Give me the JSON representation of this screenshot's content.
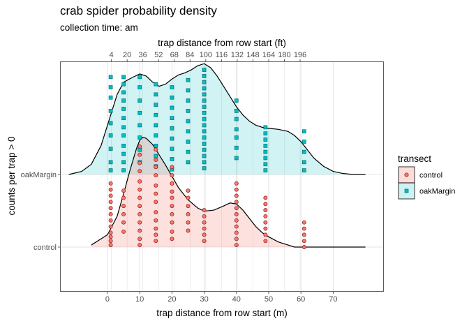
{
  "chart_data": {
    "type": "ridgeline-density-with-points",
    "title": "crab spider probability density",
    "subtitle": "collection time: am",
    "xlabel": "trap distance from row start (m)",
    "x2label": "trap distance from row start (ft)",
    "ylabel": "counts per trap > 0",
    "xlim": [
      -14.5,
      85.5
    ],
    "x_ticks": [
      0,
      10,
      20,
      30,
      40,
      50,
      60,
      70
    ],
    "x2_ticks_ft": [
      4,
      20,
      36,
      52,
      68,
      84,
      100,
      116,
      132,
      148,
      164,
      180,
      196
    ],
    "y_categories": [
      "control",
      "oakMargin"
    ],
    "grid": true,
    "legend": {
      "title": "transect",
      "position": "right",
      "entries": [
        "control",
        "oakMargin"
      ]
    },
    "colors": {
      "control": "#f8766d",
      "oakMargin": "#00bfc4"
    },
    "series": [
      {
        "name": "control",
        "density_x": [
          -5,
          0,
          3,
          5,
          7,
          9,
          10,
          11,
          12,
          14,
          16,
          18,
          20,
          22,
          25,
          28,
          30,
          33,
          36,
          38,
          40,
          42,
          44,
          46,
          48,
          50,
          53,
          56,
          58,
          60,
          62,
          64,
          67,
          70,
          73,
          76,
          80
        ],
        "density_y": [
          0.02,
          0.12,
          0.3,
          0.52,
          0.75,
          0.96,
          1.04,
          1.07,
          1.06,
          1.0,
          0.9,
          0.8,
          0.69,
          0.58,
          0.46,
          0.38,
          0.35,
          0.36,
          0.4,
          0.43,
          0.42,
          0.36,
          0.28,
          0.2,
          0.14,
          0.1,
          0.05,
          0.02,
          0.0,
          0.0,
          0.0,
          0.0,
          0.0,
          0.0,
          0.0,
          0.0,
          0.0
        ],
        "points": [
          [
            1,
            0.62
          ],
          [
            1,
            0.56
          ],
          [
            1,
            0.5
          ],
          [
            1,
            0.44
          ],
          [
            1,
            0.38
          ],
          [
            1,
            0.32
          ],
          [
            1,
            0.26
          ],
          [
            1,
            0.2
          ],
          [
            1,
            0.14
          ],
          [
            1,
            0.1
          ],
          [
            1,
            0.06
          ],
          [
            1,
            0.02
          ],
          [
            5,
            0.55
          ],
          [
            5,
            0.48
          ],
          [
            5,
            0.4
          ],
          [
            5,
            0.32
          ],
          [
            5,
            0.24
          ],
          [
            5,
            0.15
          ],
          [
            10,
            0.98
          ],
          [
            10,
            0.9
          ],
          [
            10,
            0.82
          ],
          [
            10,
            0.74
          ],
          [
            10,
            0.64
          ],
          [
            10,
            0.56
          ],
          [
            10,
            0.48
          ],
          [
            10,
            0.4
          ],
          [
            10,
            0.32
          ],
          [
            10,
            0.24
          ],
          [
            10,
            0.16
          ],
          [
            10,
            0.08
          ],
          [
            10,
            0.02
          ],
          [
            15,
            0.95
          ],
          [
            15,
            0.85
          ],
          [
            15,
            0.78
          ],
          [
            15,
            0.7
          ],
          [
            15,
            0.6
          ],
          [
            15,
            0.52
          ],
          [
            15,
            0.44
          ],
          [
            15,
            0.34
          ],
          [
            15,
            0.26
          ],
          [
            15,
            0.18
          ],
          [
            15,
            0.12
          ],
          [
            15,
            0.06
          ],
          [
            20,
            0.78
          ],
          [
            20,
            0.7
          ],
          [
            20,
            0.62
          ],
          [
            20,
            0.54
          ],
          [
            20,
            0.48
          ],
          [
            20,
            0.4
          ],
          [
            20,
            0.32
          ],
          [
            20,
            0.24
          ],
          [
            20,
            0.15
          ],
          [
            20,
            0.08
          ],
          [
            25,
            0.55
          ],
          [
            25,
            0.48
          ],
          [
            25,
            0.4
          ],
          [
            25,
            0.32
          ],
          [
            25,
            0.24
          ],
          [
            25,
            0.16
          ],
          [
            30,
            0.36
          ],
          [
            30,
            0.3
          ],
          [
            30,
            0.24
          ],
          [
            30,
            0.18
          ],
          [
            30,
            0.12
          ],
          [
            30,
            0.06
          ],
          [
            40,
            0.62
          ],
          [
            40,
            0.56
          ],
          [
            40,
            0.5
          ],
          [
            40,
            0.44
          ],
          [
            40,
            0.38
          ],
          [
            40,
            0.32
          ],
          [
            40,
            0.26
          ],
          [
            40,
            0.2
          ],
          [
            40,
            0.14
          ],
          [
            40,
            0.08
          ],
          [
            40,
            0.02
          ],
          [
            49,
            0.48
          ],
          [
            49,
            0.42
          ],
          [
            49,
            0.36
          ],
          [
            49,
            0.3
          ],
          [
            49,
            0.24
          ],
          [
            49,
            0.18
          ],
          [
            49,
            0.12
          ],
          [
            49,
            0.06
          ],
          [
            61,
            0.24
          ],
          [
            61,
            0.18
          ],
          [
            61,
            0.12
          ],
          [
            61,
            0.06
          ],
          [
            61,
            0.0
          ]
        ]
      },
      {
        "name": "oakMargin",
        "density_x": [
          -12,
          -8,
          -5,
          -2,
          0,
          3,
          5,
          8,
          10,
          12,
          14,
          16,
          18,
          20,
          22,
          24,
          26,
          28,
          30,
          32,
          34,
          36,
          38,
          40,
          42,
          44,
          46,
          48,
          50,
          53,
          56,
          58,
          60,
          62,
          64,
          67,
          70,
          73,
          76,
          80
        ],
        "density_y": [
          0.0,
          0.03,
          0.1,
          0.28,
          0.48,
          0.78,
          0.9,
          0.95,
          0.98,
          0.96,
          0.9,
          0.86,
          0.88,
          0.93,
          0.97,
          0.99,
          1.02,
          1.06,
          1.08,
          1.04,
          0.96,
          0.86,
          0.76,
          0.66,
          0.58,
          0.52,
          0.48,
          0.46,
          0.45,
          0.44,
          0.42,
          0.38,
          0.32,
          0.24,
          0.16,
          0.08,
          0.03,
          0.01,
          0.0,
          0.0
        ],
        "points": [
          [
            1,
            0.95
          ],
          [
            1,
            0.85
          ],
          [
            1,
            0.75
          ],
          [
            1,
            0.62
          ],
          [
            1,
            0.5
          ],
          [
            1,
            0.38
          ],
          [
            1,
            0.25
          ],
          [
            1,
            0.12
          ],
          [
            1,
            0.04
          ],
          [
            5,
            0.95
          ],
          [
            5,
            0.88
          ],
          [
            5,
            0.8
          ],
          [
            5,
            0.72
          ],
          [
            5,
            0.64
          ],
          [
            5,
            0.55
          ],
          [
            5,
            0.46
          ],
          [
            5,
            0.38
          ],
          [
            5,
            0.28
          ],
          [
            5,
            0.2
          ],
          [
            5,
            0.12
          ],
          [
            5,
            0.04
          ],
          [
            10,
            0.95
          ],
          [
            10,
            0.85
          ],
          [
            10,
            0.72
          ],
          [
            10,
            0.6
          ],
          [
            10,
            0.48
          ],
          [
            10,
            0.36
          ],
          [
            10,
            0.24
          ],
          [
            10,
            0.12
          ],
          [
            15,
            0.88
          ],
          [
            15,
            0.78
          ],
          [
            15,
            0.68
          ],
          [
            15,
            0.58
          ],
          [
            15,
            0.48
          ],
          [
            15,
            0.38
          ],
          [
            15,
            0.28
          ],
          [
            15,
            0.18
          ],
          [
            15,
            0.08
          ],
          [
            20,
            0.85
          ],
          [
            20,
            0.75
          ],
          [
            20,
            0.65
          ],
          [
            20,
            0.55
          ],
          [
            20,
            0.45
          ],
          [
            20,
            0.35
          ],
          [
            20,
            0.25
          ],
          [
            20,
            0.15
          ],
          [
            20,
            0.05
          ],
          [
            25,
            0.92
          ],
          [
            25,
            0.82
          ],
          [
            25,
            0.72
          ],
          [
            25,
            0.62
          ],
          [
            25,
            0.52
          ],
          [
            25,
            0.42
          ],
          [
            25,
            0.32
          ],
          [
            25,
            0.22
          ],
          [
            25,
            0.12
          ],
          [
            30,
            1.02
          ],
          [
            30,
            0.96
          ],
          [
            30,
            0.9
          ],
          [
            30,
            0.84
          ],
          [
            30,
            0.78
          ],
          [
            30,
            0.72
          ],
          [
            30,
            0.66
          ],
          [
            30,
            0.6
          ],
          [
            30,
            0.54
          ],
          [
            30,
            0.48
          ],
          [
            30,
            0.42
          ],
          [
            30,
            0.36
          ],
          [
            30,
            0.3
          ],
          [
            30,
            0.24
          ],
          [
            30,
            0.18
          ],
          [
            30,
            0.12
          ],
          [
            30,
            0.06
          ],
          [
            40,
            0.72
          ],
          [
            40,
            0.62
          ],
          [
            40,
            0.54
          ],
          [
            40,
            0.44
          ],
          [
            40,
            0.36
          ],
          [
            40,
            0.26
          ],
          [
            40,
            0.16
          ],
          [
            49,
            0.46
          ],
          [
            49,
            0.4
          ],
          [
            49,
            0.34
          ],
          [
            49,
            0.28
          ],
          [
            49,
            0.22
          ],
          [
            49,
            0.16
          ],
          [
            49,
            0.1
          ],
          [
            49,
            0.04
          ],
          [
            61,
            0.42
          ],
          [
            61,
            0.32
          ],
          [
            61,
            0.22
          ],
          [
            61,
            0.12
          ],
          [
            61,
            0.04
          ]
        ]
      }
    ]
  }
}
